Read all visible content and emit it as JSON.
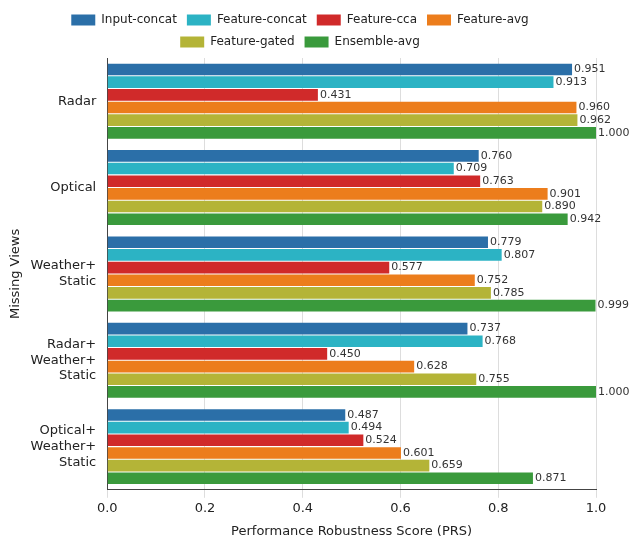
{
  "chart_data": {
    "type": "bar",
    "orientation": "horizontal",
    "x_label": "Performance Robustness Score (PRS)",
    "y_label": "Missing Views",
    "categories": [
      "Radar",
      "Optical",
      "Weather+\nStatic",
      "Radar+\nWeather+\nStatic",
      "Optical+\nWeather+\nStatic"
    ],
    "series": [
      {
        "name": "Input-concat",
        "color": "#2b6fa8",
        "values": [
          0.951,
          0.76,
          0.779,
          0.737,
          0.487
        ],
        "value_labels": [
          "0.951",
          "0.760",
          "0.779",
          "0.737",
          "0.487"
        ]
      },
      {
        "name": "Feature-concat",
        "color": "#2cb3c4",
        "values": [
          0.913,
          0.709,
          0.807,
          0.768,
          0.494
        ],
        "value_labels": [
          "0.913",
          "0.709",
          "0.807",
          "0.768",
          "0.494"
        ]
      },
      {
        "name": "Feature-cca",
        "color": "#d02a2a",
        "values": [
          0.431,
          0.763,
          0.577,
          0.45,
          0.524
        ],
        "value_labels": [
          "0.431",
          "0.763",
          "0.577",
          "0.450",
          "0.524"
        ]
      },
      {
        "name": "Feature-avg",
        "color": "#ec7d1c",
        "values": [
          0.96,
          0.901,
          0.752,
          0.628,
          0.601
        ],
        "value_labels": [
          "0.960",
          "0.901",
          "0.752",
          "0.628",
          "0.601"
        ]
      },
      {
        "name": "Feature-gated",
        "color": "#b4b437",
        "values": [
          0.962,
          0.89,
          0.785,
          0.755,
          0.659
        ],
        "value_labels": [
          "0.962",
          "0.890",
          "0.785",
          "0.755",
          "0.659"
        ]
      },
      {
        "name": "Ensemble-avg",
        "color": "#3a9a3c",
        "values": [
          1.0,
          0.942,
          0.999,
          1.0,
          0.871
        ],
        "value_labels": [
          "1.000",
          "0.942",
          "0.999",
          "1.000",
          "0.871"
        ]
      }
    ],
    "xlim": [
      0,
      1.0
    ],
    "xticks": [
      {
        "value": 0,
        "label": "0.0"
      },
      {
        "value": 0.2,
        "label": "0.2"
      },
      {
        "value": 0.4,
        "label": "0.4"
      },
      {
        "value": 0.6,
        "label": "0.6"
      },
      {
        "value": 0.8,
        "label": "0.8"
      },
      {
        "value": 1.0,
        "label": "1.0"
      }
    ],
    "grid": true,
    "legend": "top",
    "data_labels": true
  }
}
